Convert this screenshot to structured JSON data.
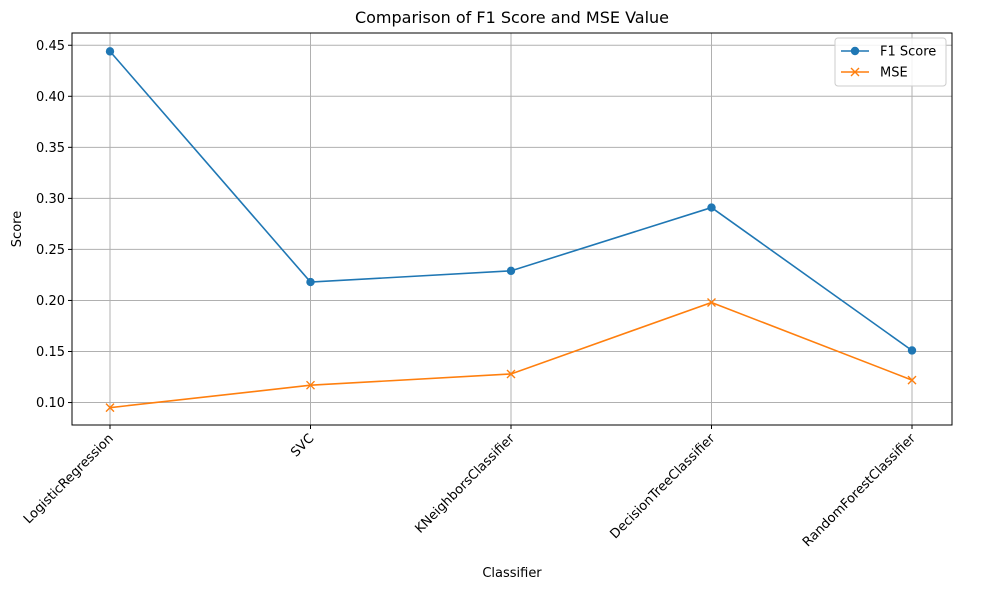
{
  "chart_data": {
    "type": "line",
    "title": "Comparison of F1 Score and MSE Value",
    "xlabel": "Classifier",
    "ylabel": "Score",
    "categories": [
      "LogisticRegression",
      "SVC",
      "KNeighborsClassifier",
      "DecisionTreeClassifier",
      "RandomForestClassifier"
    ],
    "series": [
      {
        "name": "F1 Score",
        "values": [
          0.444,
          0.218,
          0.229,
          0.291,
          0.151
        ],
        "color": "#1f77b4",
        "marker": "circle"
      },
      {
        "name": "MSE",
        "values": [
          0.095,
          0.117,
          0.128,
          0.198,
          0.122
        ],
        "color": "#ff7f0e",
        "marker": "x"
      }
    ],
    "ylim": [
      0.078,
      0.462
    ],
    "yticks": [
      "0.10",
      "0.15",
      "0.20",
      "0.25",
      "0.30",
      "0.35",
      "0.40",
      "0.45"
    ],
    "grid": true,
    "legend_position": "top-right"
  }
}
